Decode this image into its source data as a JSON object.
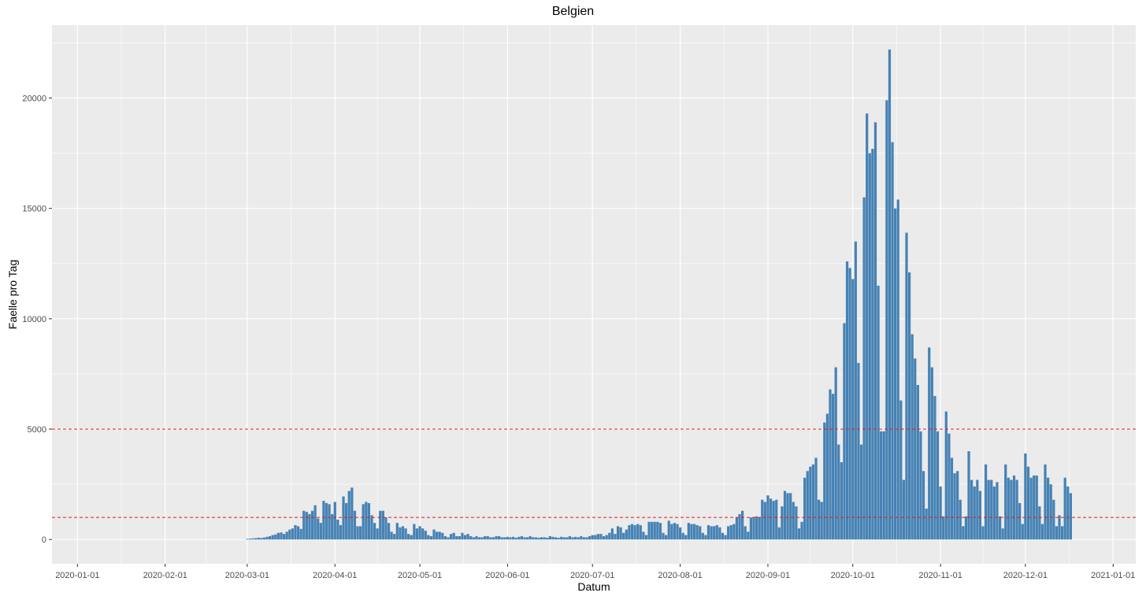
{
  "chart_data": {
    "type": "bar",
    "title": "Belgien",
    "xlabel": "Datum",
    "ylabel": "Faelle pro Tag",
    "x_start": "2020-03-01",
    "x_end": "2020-12-29",
    "xlim": [
      "2019-12-23",
      "2021-01-09"
    ],
    "ylim": [
      -1100,
      23300
    ],
    "x_ticks": [
      "2020-01-01",
      "2020-02-01",
      "2020-03-01",
      "2020-04-01",
      "2020-05-01",
      "2020-06-01",
      "2020-07-01",
      "2020-08-01",
      "2020-09-01",
      "2020-10-01",
      "2020-11-01",
      "2020-12-01",
      "2021-01-01"
    ],
    "y_ticks": [
      0,
      5000,
      10000,
      15000,
      20000
    ],
    "reference_lines": [
      5000,
      1000
    ],
    "bar_color": "#4682B4",
    "reference_line_color": "#E41A1C",
    "panel_color": "#EBEBEB",
    "grid": true,
    "values": [
      30,
      40,
      50,
      60,
      80,
      70,
      90,
      120,
      150,
      200,
      230,
      300,
      320,
      250,
      350,
      450,
      500,
      650,
      600,
      480,
      1300,
      1250,
      1150,
      1300,
      1550,
      950,
      750,
      1750,
      1650,
      1600,
      1150,
      1700,
      900,
      650,
      1950,
      1650,
      2200,
      2350,
      1300,
      600,
      600,
      1600,
      1700,
      1650,
      1100,
      750,
      500,
      1300,
      1300,
      1000,
      750,
      350,
      250,
      750,
      550,
      600,
      500,
      250,
      200,
      700,
      500,
      600,
      500,
      400,
      200,
      150,
      450,
      350,
      350,
      300,
      150,
      100,
      250,
      300,
      150,
      150,
      300,
      200,
      250,
      150,
      100,
      150,
      100,
      100,
      150,
      150,
      100,
      100,
      150,
      150,
      100,
      100,
      120,
      100,
      120,
      80,
      120,
      150,
      100,
      100,
      150,
      100,
      100,
      80,
      100,
      100,
      80,
      150,
      120,
      100,
      80,
      120,
      100,
      100,
      150,
      100,
      120,
      100,
      150,
      100,
      100,
      150,
      200,
      200,
      250,
      250,
      150,
      200,
      300,
      500,
      250,
      600,
      550,
      300,
      450,
      650,
      700,
      650,
      700,
      650,
      350,
      200,
      800,
      800,
      800,
      800,
      750,
      300,
      200,
      850,
      700,
      750,
      700,
      550,
      300,
      200,
      750,
      700,
      700,
      650,
      600,
      300,
      200,
      650,
      600,
      600,
      650,
      550,
      300,
      200,
      600,
      650,
      700,
      1000,
      1150,
      1300,
      600,
      350,
      1000,
      1000,
      1050,
      1000,
      1800,
      1700,
      2000,
      1850,
      1750,
      1800,
      550,
      1500,
      2200,
      2100,
      2100,
      1700,
      1500,
      500,
      800,
      2800,
      3100,
      3300,
      3400,
      3700,
      1800,
      1700,
      5300,
      5700,
      6800,
      6600,
      7800,
      4300,
      3500,
      9800,
      12600,
      12300,
      11800,
      13500,
      8000,
      4300,
      15500,
      19300,
      17500,
      17700,
      18900,
      11500,
      4900,
      4900,
      19900,
      22200,
      18000,
      15000,
      15400,
      6300,
      2700,
      13900,
      12100,
      9300,
      8200,
      7000,
      4900,
      3100,
      1400,
      8700,
      7800,
      6500,
      4900,
      2400,
      1050,
      5800,
      4800,
      3700,
      3000,
      3100,
      1800,
      600,
      1050,
      4000,
      2700,
      2400,
      2700,
      2200,
      600,
      3400,
      2700,
      2700,
      2400,
      2600,
      1050,
      500,
      3400,
      2800,
      2700,
      2900,
      2700,
      1650,
      700,
      3900,
      3300,
      2800,
      2900,
      2900,
      1500,
      700,
      3400,
      2800,
      2500,
      1800,
      600,
      1100,
      600,
      2800,
      2400,
      2100
    ]
  }
}
